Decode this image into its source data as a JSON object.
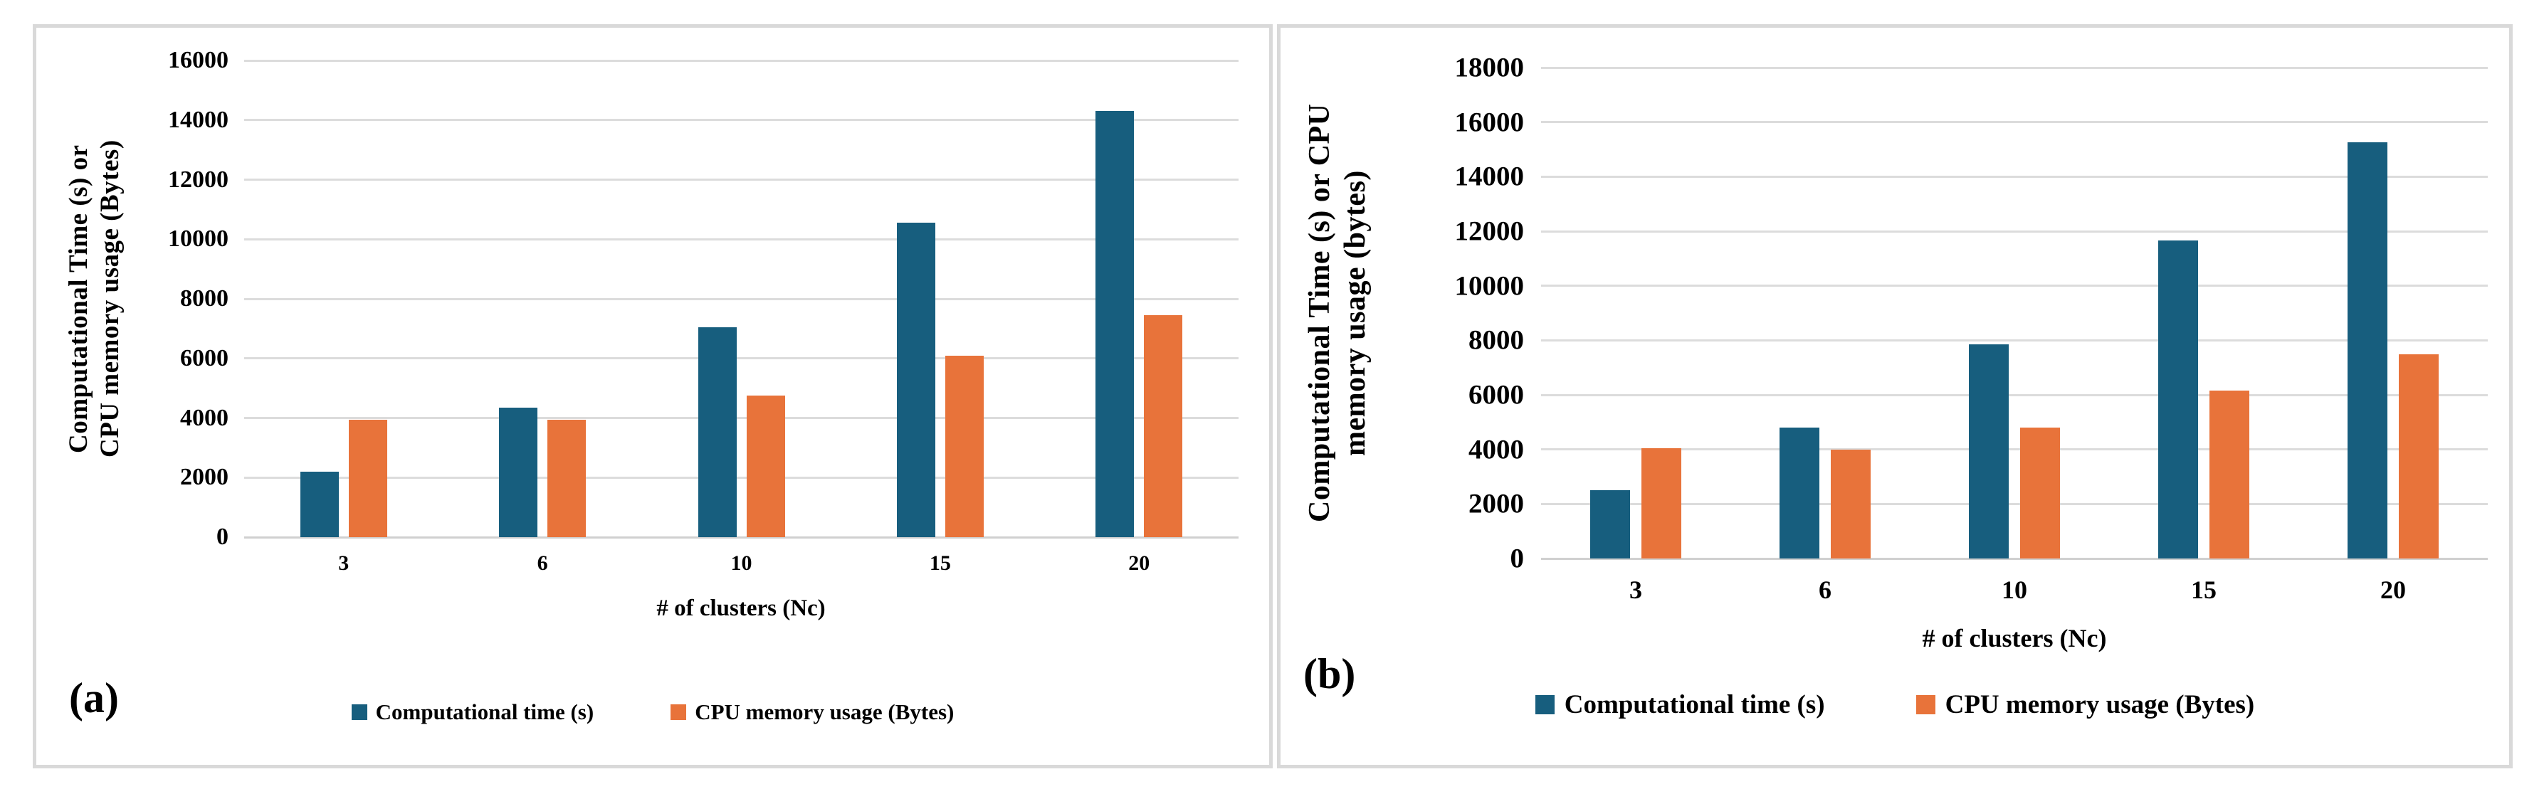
{
  "figure": {
    "description": "Two-panel grouped bar chart comparing computational time and CPU memory usage versus number of clusters"
  },
  "colors": {
    "computational_time": "#175E7E",
    "cpu_memory": "#E8733A",
    "gridline": "#DCDCDC",
    "panel_border": "#D9D9D9",
    "text": "#000000"
  },
  "panels": [
    {
      "label": "(a)",
      "y_title": "Computational Time (s) or\nCPU memory usage (Bytes)",
      "x_title": "# of clusters (Nc)",
      "legend": [
        {
          "label": "Computational time (s)",
          "color": "#175E7E"
        },
        {
          "label": "CPU memory usage (Bytes)",
          "color": "#E8733A"
        }
      ]
    },
    {
      "label": "(b)",
      "y_title": "Computational Time (s) or CPU\nmemory usage (bytes)",
      "x_title": "# of clusters (Nc)",
      "legend": [
        {
          "label": "Computational time (s)",
          "color": "#175E7E"
        },
        {
          "label": "CPU memory usage (Bytes)",
          "color": "#E8733A"
        }
      ]
    }
  ],
  "chart_data": [
    {
      "type": "bar",
      "panel": "a",
      "title": "",
      "xlabel": "# of clusters (Nc)",
      "ylabel": "Computational Time (s) or CPU memory usage (Bytes)",
      "categories": [
        "3",
        "6",
        "10",
        "15",
        "20"
      ],
      "series": [
        {
          "name": "Computational time (s)",
          "color": "#175E7E",
          "values": [
            2200,
            4350,
            7050,
            10550,
            14300
          ]
        },
        {
          "name": "CPU memory usage (Bytes)",
          "color": "#E8733A",
          "values": [
            3950,
            3950,
            4750,
            6100,
            7450
          ]
        }
      ],
      "ylim": [
        0,
        16000
      ],
      "ytick_step": 2000,
      "yticks": [
        0,
        2000,
        4000,
        6000,
        8000,
        10000,
        12000,
        14000,
        16000
      ],
      "grid": true,
      "legend_position": "bottom"
    },
    {
      "type": "bar",
      "panel": "b",
      "title": "",
      "xlabel": "# of clusters (Nc)",
      "ylabel": "Computational Time (s) or CPU memory usage (bytes)",
      "categories": [
        "3",
        "6",
        "10",
        "15",
        "20"
      ],
      "series": [
        {
          "name": "Computational time (s)",
          "color": "#175E7E",
          "values": [
            2500,
            4800,
            7850,
            11650,
            15250
          ]
        },
        {
          "name": "CPU memory usage (Bytes)",
          "color": "#E8733A",
          "values": [
            4050,
            4000,
            4800,
            6150,
            7500
          ]
        }
      ],
      "ylim": [
        0,
        18000
      ],
      "ytick_step": 2000,
      "yticks": [
        0,
        2000,
        4000,
        6000,
        8000,
        10000,
        12000,
        14000,
        16000,
        18000
      ],
      "grid": true,
      "legend_position": "bottom"
    }
  ]
}
